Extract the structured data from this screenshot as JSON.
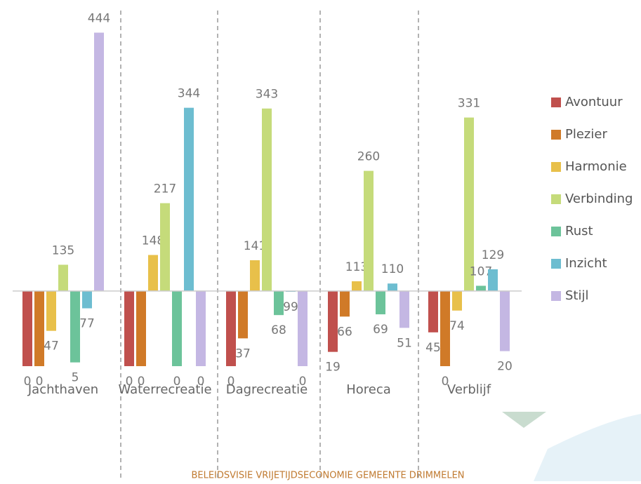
{
  "chart_data": {
    "type": "bar",
    "categories": [
      "Jachthaven",
      "Waterrecreatie",
      "Dagrecreatie",
      "Horeca",
      "Verblijf"
    ],
    "series": [
      {
        "name": "Avontuur",
        "color": "#c0504d",
        "values": [
          0,
          0,
          0,
          19,
          45
        ]
      },
      {
        "name": "Plezier",
        "color": "#d07a28",
        "values": [
          0,
          0,
          37,
          66,
          0
        ]
      },
      {
        "name": "Harmonie",
        "color": "#e8c04a",
        "values": [
          47,
          148,
          141,
          113,
          74
        ]
      },
      {
        "name": "Verbinding",
        "color": "#c5db7a",
        "values": [
          135,
          217,
          343,
          260,
          331
        ]
      },
      {
        "name": "Rust",
        "color": "#6cc39a",
        "values": [
          5,
          0,
          68,
          69,
          107
        ]
      },
      {
        "name": "Inzicht",
        "color": "#6dbdd0",
        "values": [
          77,
          344,
          99,
          110,
          129
        ]
      },
      {
        "name": "Stijl",
        "color": "#c4b7e3",
        "values": [
          444,
          0,
          0,
          51,
          20
        ]
      }
    ],
    "ylim": [
      0,
      480
    ],
    "x_axis_crosses_at": 100,
    "legend": "right"
  },
  "footer": "BELEIDSVISIE VRIJETIJDSECONOMIE GEMEENTE DRIMMELEN"
}
